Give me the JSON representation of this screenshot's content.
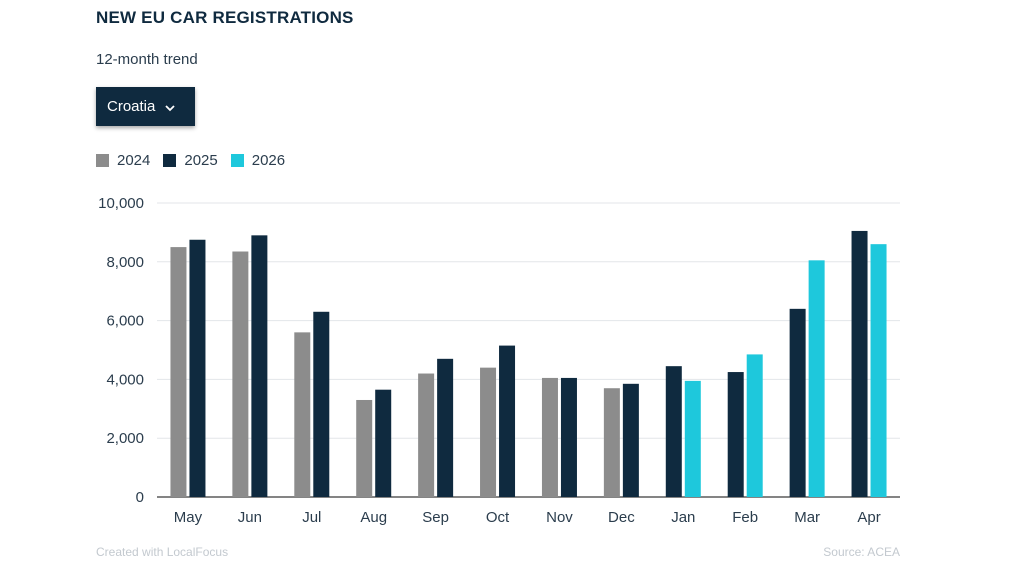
{
  "header": {
    "title": "NEW EU CAR REGISTRATIONS",
    "subtitle": "12-month trend"
  },
  "selector": {
    "selected": "Croatia",
    "icon": "chevron-down-icon"
  },
  "legend": [
    {
      "label": "2024",
      "color": "#8c8c8c"
    },
    {
      "label": "2025",
      "color": "#0f2a3f"
    },
    {
      "label": "2026",
      "color": "#1ec8dc"
    }
  ],
  "footer": {
    "credit": "Created with LocalFocus",
    "source": "Source:  ACEA"
  },
  "chart_data": {
    "type": "bar",
    "categories": [
      "May",
      "Jun",
      "Jul",
      "Aug",
      "Sep",
      "Oct",
      "Nov",
      "Dec",
      "Jan",
      "Feb",
      "Mar",
      "Apr"
    ],
    "series": [
      {
        "name": "2024",
        "values": [
          8500,
          8350,
          5600,
          3300,
          4200,
          4400,
          4050,
          3700,
          null,
          null,
          null,
          null
        ]
      },
      {
        "name": "2025",
        "values": [
          8750,
          8900,
          6300,
          3650,
          4700,
          5150,
          4050,
          3850,
          4450,
          4250,
          6400,
          9050
        ]
      },
      {
        "name": "2026",
        "values": [
          null,
          null,
          null,
          null,
          null,
          null,
          null,
          null,
          3950,
          4850,
          8050,
          8600
        ]
      }
    ],
    "ylim": [
      0,
      10000
    ],
    "yticks": [
      "0",
      "2,000",
      "4,000",
      "6,000",
      "8,000",
      "10,000"
    ],
    "ytick_values": [
      0,
      2000,
      4000,
      6000,
      8000,
      10000
    ],
    "grid": true,
    "legend_position": "top-left"
  }
}
